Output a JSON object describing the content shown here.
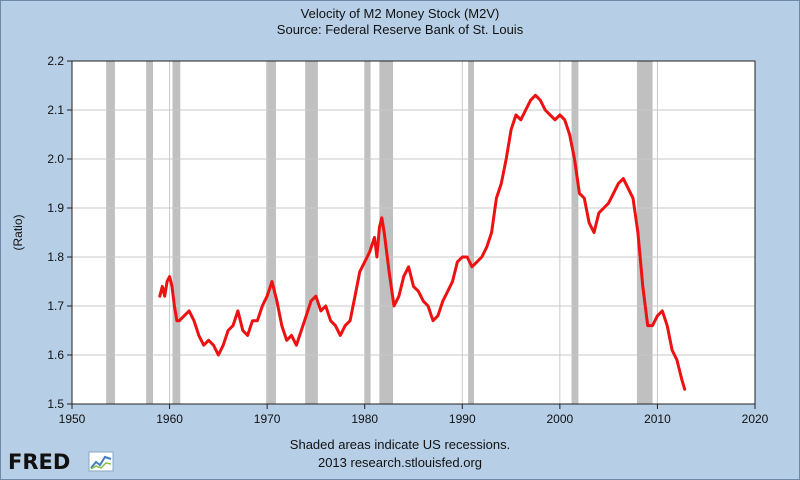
{
  "header": {
    "title": "Velocity of M2 Money Stock (M2V)",
    "subtitle": "Source: Federal Reserve Bank of St. Louis"
  },
  "footer": {
    "note": "Shaded areas indicate US recessions.",
    "credit": "2013 research.stlouisfed.org",
    "logo_text": "FRED"
  },
  "colors": {
    "background": "#b7cfe6",
    "plot_background": "#ffffff",
    "series": "#ee1111",
    "recession": "#c0c0c0",
    "grid": "#c9c9c9"
  },
  "chart_data": {
    "type": "line",
    "title": "Velocity of M2 Money Stock (M2V)",
    "subtitle": "Source: Federal Reserve Bank of St. Louis",
    "xlabel": "",
    "ylabel": "(Ratio)",
    "xlim": [
      1950,
      2020
    ],
    "ylim": [
      1.5,
      2.2
    ],
    "xticks": [
      1950,
      1960,
      1970,
      1980,
      1990,
      2000,
      2010,
      2020
    ],
    "yticks": [
      "1.5",
      "1.6",
      "1.7",
      "1.8",
      "1.9",
      "2.0",
      "2.1",
      "2.2"
    ],
    "grid": true,
    "recessions": [
      [
        1953.5,
        1954.4
      ],
      [
        1957.6,
        1958.3
      ],
      [
        1960.3,
        1961.1
      ],
      [
        1969.9,
        1970.9
      ],
      [
        1973.9,
        1975.2
      ],
      [
        1980.0,
        1980.6
      ],
      [
        1981.5,
        1982.9
      ],
      [
        1990.6,
        1991.2
      ],
      [
        2001.2,
        2001.9
      ],
      [
        2007.9,
        2009.5
      ]
    ],
    "series": [
      {
        "name": "M2V",
        "x": [
          1959.0,
          1959.25,
          1959.5,
          1959.75,
          1960.0,
          1960.25,
          1960.5,
          1960.75,
          1961.0,
          1961.5,
          1962.0,
          1962.5,
          1963.0,
          1963.5,
          1964.0,
          1964.5,
          1965.0,
          1965.5,
          1966.0,
          1966.5,
          1967.0,
          1967.5,
          1968.0,
          1968.5,
          1969.0,
          1969.5,
          1970.0,
          1970.5,
          1971.0,
          1971.5,
          1972.0,
          1972.5,
          1973.0,
          1973.5,
          1974.0,
          1974.5,
          1975.0,
          1975.5,
          1976.0,
          1976.5,
          1977.0,
          1977.5,
          1978.0,
          1978.5,
          1979.0,
          1979.5,
          1980.0,
          1980.5,
          1981.0,
          1981.25,
          1981.5,
          1981.75,
          1982.0,
          1982.5,
          1983.0,
          1983.5,
          1984.0,
          1984.5,
          1985.0,
          1985.5,
          1986.0,
          1986.5,
          1987.0,
          1987.5,
          1988.0,
          1988.5,
          1989.0,
          1989.5,
          1990.0,
          1990.5,
          1991.0,
          1991.5,
          1992.0,
          1992.5,
          1993.0,
          1993.5,
          1994.0,
          1994.5,
          1995.0,
          1995.5,
          1996.0,
          1996.5,
          1997.0,
          1997.5,
          1998.0,
          1998.5,
          1999.0,
          1999.5,
          2000.0,
          2000.5,
          2001.0,
          2001.5,
          2002.0,
          2002.5,
          2003.0,
          2003.5,
          2004.0,
          2004.5,
          2005.0,
          2005.5,
          2006.0,
          2006.5,
          2007.0,
          2007.5,
          2008.0,
          2008.5,
          2009.0,
          2009.5,
          2010.0,
          2010.5,
          2011.0,
          2011.5,
          2012.0,
          2012.5,
          2012.8
        ],
        "values": [
          1.72,
          1.74,
          1.72,
          1.75,
          1.76,
          1.74,
          1.7,
          1.67,
          1.67,
          1.68,
          1.69,
          1.67,
          1.64,
          1.62,
          1.63,
          1.62,
          1.6,
          1.62,
          1.65,
          1.66,
          1.69,
          1.65,
          1.64,
          1.67,
          1.67,
          1.7,
          1.72,
          1.75,
          1.71,
          1.66,
          1.63,
          1.64,
          1.62,
          1.65,
          1.68,
          1.71,
          1.72,
          1.69,
          1.7,
          1.67,
          1.66,
          1.64,
          1.66,
          1.67,
          1.72,
          1.77,
          1.79,
          1.81,
          1.84,
          1.8,
          1.86,
          1.88,
          1.85,
          1.77,
          1.7,
          1.72,
          1.76,
          1.78,
          1.74,
          1.73,
          1.71,
          1.7,
          1.67,
          1.68,
          1.71,
          1.73,
          1.75,
          1.79,
          1.8,
          1.8,
          1.78,
          1.79,
          1.8,
          1.82,
          1.85,
          1.92,
          1.95,
          2.0,
          2.06,
          2.09,
          2.08,
          2.1,
          2.12,
          2.13,
          2.12,
          2.1,
          2.09,
          2.08,
          2.09,
          2.08,
          2.05,
          2.0,
          1.93,
          1.92,
          1.87,
          1.85,
          1.89,
          1.9,
          1.91,
          1.93,
          1.95,
          1.96,
          1.94,
          1.92,
          1.85,
          1.74,
          1.66,
          1.66,
          1.68,
          1.69,
          1.66,
          1.61,
          1.59,
          1.55,
          1.53
        ]
      }
    ]
  }
}
